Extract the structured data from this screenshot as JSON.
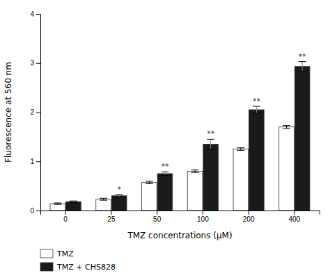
{
  "chart_data": {
    "type": "bar",
    "xlabel": "TMZ concentrations (μM)",
    "ylabel": "Fluorescence at 560 nm",
    "categories": [
      "0",
      "25",
      "50",
      "100",
      "200",
      "400"
    ],
    "series": [
      {
        "name": "TMZ",
        "color": "#ffffff",
        "values": [
          0.14,
          0.23,
          0.57,
          0.8,
          1.25,
          1.7
        ],
        "errors": [
          0.015,
          0.02,
          0.025,
          0.025,
          0.025,
          0.03
        ]
      },
      {
        "name": "TMZ + CHS828",
        "color": "#1a1a1a",
        "values": [
          0.18,
          0.3,
          0.75,
          1.35,
          2.05,
          2.93
        ],
        "errors": [
          0.015,
          0.025,
          0.035,
          0.1,
          0.07,
          0.1
        ],
        "annotations": [
          null,
          "*",
          "**",
          "**",
          "**",
          "**"
        ]
      }
    ],
    "ylim": [
      0,
      4
    ],
    "yticks": [
      0,
      1,
      2,
      3,
      4
    ],
    "legend": "bottom"
  }
}
